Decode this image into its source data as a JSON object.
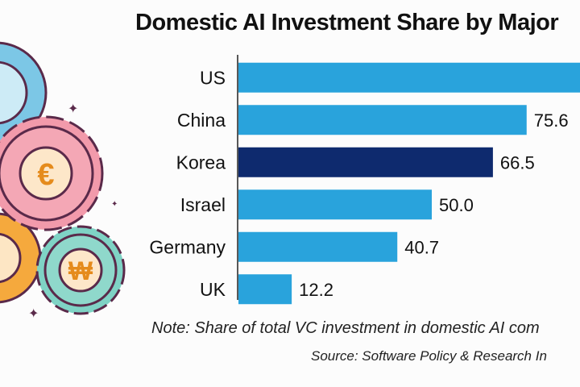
{
  "chart_data": {
    "type": "bar",
    "orientation": "horizontal",
    "title": "Domestic AI Investment Share by Major",
    "categories": [
      "US",
      "China",
      "Korea",
      "Israel",
      "Germany",
      "UK"
    ],
    "values": [
      null,
      75.6,
      66.5,
      50.0,
      40.7,
      12.2
    ],
    "value_labels": [
      "",
      "75.6",
      "66.5",
      "50.0",
      "40.7",
      "12.2"
    ],
    "colors": {
      "default": "#29a3dc",
      "highlight": "#0e2a6e",
      "highlight_category": "Korea"
    },
    "grid": false,
    "note": "Note: Share of total VC investment in domestic AI com",
    "source": "Source: Software Policy & Research In"
  },
  "decoration": {
    "icons": [
      "gear-euro-icon",
      "gear-won-icon",
      "gear-icon",
      "sparkle-icon"
    ],
    "symbols": [
      "€",
      "₩"
    ]
  }
}
